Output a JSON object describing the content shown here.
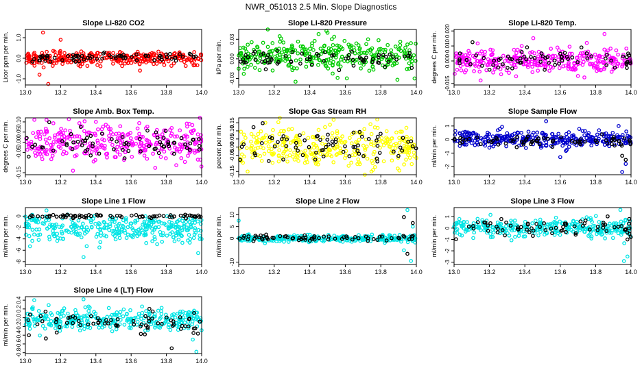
{
  "figure": {
    "title": "NWR_051013  2.5 Min. Slope Diagnostics"
  },
  "chart_data": [
    {
      "type": "scatter",
      "title": "Slope Li-820 CO2",
      "ylabel": "Licor ppm per min.",
      "xlim": [
        13.0,
        14.0
      ],
      "ylim": [
        -1.3,
        1.4
      ],
      "x_ticks": [
        "13.0",
        "13.2",
        "13.4",
        "13.6",
        "13.8",
        "14.0"
      ],
      "y_ticks": [
        {
          "v": -1.0,
          "label": "-1.0"
        },
        {
          "v": 0.0,
          "label": "0.0"
        },
        {
          "v": 1.0,
          "label": "1.0"
        }
      ],
      "series": [
        {
          "color": "#ff0000",
          "spread": 0.18,
          "center": 0.0,
          "outliers": [
            [
              13.1,
              1.25
            ],
            [
              13.13,
              -1.25
            ],
            [
              13.08,
              -0.8
            ],
            [
              13.2,
              0.9
            ],
            [
              13.65,
              -0.6
            ]
          ]
        },
        {
          "color": "#000000",
          "spread": 0.1,
          "center": 0.05
        }
      ]
    },
    {
      "type": "scatter",
      "title": "Slope Li-820 Pressure",
      "ylabel": "kPa per min.",
      "xlim": [
        13.0,
        14.0
      ],
      "ylim": [
        -0.04,
        0.045
      ],
      "x_ticks": [
        "13.0",
        "13.2",
        "13.4",
        "13.6",
        "13.8",
        "14.0"
      ],
      "y_ticks": [
        {
          "v": -0.03,
          "label": "-0.03"
        },
        {
          "v": 0.0,
          "label": "0.00"
        },
        {
          "v": 0.03,
          "label": "0.03"
        }
      ],
      "series": [
        {
          "color": "#00cc00",
          "spread": 0.012,
          "center": 0.005,
          "outliers": [
            [
              13.32,
              -0.035
            ],
            [
              13.5,
              0.04
            ],
            [
              13.45,
              0.038
            ],
            [
              13.99,
              -0.03
            ],
            [
              13.0,
              -0.015
            ]
          ]
        },
        {
          "color": "#000000",
          "spread": 0.006,
          "center": -0.002
        }
      ]
    },
    {
      "type": "scatter",
      "title": "Slope Li-820 Temp.",
      "ylabel": "degrees C per min.",
      "xlim": [
        13.0,
        14.0
      ],
      "ylim": [
        -0.016,
        0.021
      ],
      "x_ticks": [
        "13.0",
        "13.2",
        "13.4",
        "13.6",
        "13.8",
        "14.0"
      ],
      "y_ticks": [
        {
          "v": -0.015,
          "label": "-0.015"
        },
        {
          "v": 0.0,
          "label": "0.000"
        },
        {
          "v": 0.01,
          "label": "0.010"
        },
        {
          "v": 0.02,
          "label": "0.020"
        }
      ],
      "series": [
        {
          "color": "#ff00ff",
          "spread": 0.004,
          "center": 0.0,
          "outliers": [
            [
              13.85,
              0.018
            ],
            [
              13.15,
              -0.013
            ],
            [
              13.75,
              0.012
            ],
            [
              13.7,
              -0.01
            ]
          ]
        },
        {
          "color": "#000000",
          "spread": 0.003,
          "center": 0.001
        }
      ]
    },
    {
      "type": "scatter",
      "title": "Slope Amb. Box Temp.",
      "ylabel": "degrees C per min.",
      "xlim": [
        13.0,
        14.0
      ],
      "ylim": [
        -0.16,
        0.12
      ],
      "x_ticks": [
        "13.0",
        "13.2",
        "13.4",
        "13.6",
        "13.8",
        "14.0"
      ],
      "y_ticks": [
        {
          "v": -0.15,
          "label": "-0.15"
        },
        {
          "v": -0.05,
          "label": "-0.05"
        },
        {
          "v": 0.0,
          "label": "0.00"
        },
        {
          "v": 0.05,
          "label": "0.05"
        },
        {
          "v": 0.1,
          "label": "0.10"
        }
      ],
      "series": [
        {
          "color": "#ff00ff",
          "spread": 0.045,
          "center": 0.0,
          "outliers": [
            [
              13.12,
              0.11
            ],
            [
              13.27,
              -0.14
            ],
            [
              13.4,
              0.1
            ]
          ]
        },
        {
          "color": "#000000",
          "spread": 0.035,
          "center": 0.0
        }
      ]
    },
    {
      "type": "scatter",
      "title": "Slope Gas Stream RH",
      "ylabel": "percent per min.",
      "xlim": [
        13.0,
        14.0
      ],
      "ylim": [
        -0.17,
        0.18
      ],
      "x_ticks": [
        "13.0",
        "13.2",
        "13.4",
        "13.6",
        "13.8",
        "14.0"
      ],
      "y_ticks": [
        {
          "v": -0.15,
          "label": "-0.15"
        },
        {
          "v": -0.05,
          "label": "-0.05"
        },
        {
          "v": 0.0,
          "label": "0.00"
        },
        {
          "v": 0.05,
          "label": "0.05"
        },
        {
          "v": 0.1,
          "label": "0.10"
        },
        {
          "v": 0.15,
          "label": "0.15"
        }
      ],
      "series": [
        {
          "color": "#ffff00",
          "spread": 0.06,
          "center": 0.0,
          "outliers": [
            [
              13.15,
              0.15
            ],
            [
              13.05,
              -0.15
            ],
            [
              13.78,
              0.17
            ]
          ]
        },
        {
          "color": "#000000",
          "spread": 0.05,
          "center": 0.0
        }
      ]
    },
    {
      "type": "scatter",
      "title": "Slope Sample Flow",
      "ylabel": "ml/min per min.",
      "xlim": [
        13.0,
        14.0
      ],
      "ylim": [
        -2.6,
        1.6
      ],
      "x_ticks": [
        "13.0",
        "13.2",
        "13.4",
        "13.6",
        "13.8",
        "14.0"
      ],
      "y_ticks": [
        {
          "v": -2.0,
          "label": "-2"
        },
        {
          "v": -1.0,
          "label": "-1"
        },
        {
          "v": 0.0,
          "label": "0"
        },
        {
          "v": 1.0,
          "label": "1"
        }
      ],
      "series": [
        {
          "color": "#0000cc",
          "spread": 0.3,
          "center": 0.0,
          "outliers": [
            [
              13.52,
              1.35
            ],
            [
              13.95,
              -2.4
            ],
            [
              13.93,
              1.0
            ],
            [
              13.6,
              -1.3
            ],
            [
              13.97,
              -1.8
            ]
          ]
        },
        {
          "color": "#000000",
          "spread": 0.2,
          "center": -0.1,
          "outliers": [
            [
              13.97,
              -1.5
            ],
            [
              13.95,
              -1.2
            ]
          ]
        }
      ]
    },
    {
      "type": "scatter",
      "title": "Slope Line 1 Flow",
      "ylabel": "ml/min per min.",
      "xlim": [
        13.0,
        14.0
      ],
      "ylim": [
        -8.5,
        1.5
      ],
      "x_ticks": [
        "13.0",
        "13.2",
        "13.4",
        "13.6",
        "13.8",
        "14.0"
      ],
      "y_ticks": [
        {
          "v": -8.0,
          "label": "-8"
        },
        {
          "v": -6.0,
          "label": "-6"
        },
        {
          "v": -4.0,
          "label": "-4"
        },
        {
          "v": -2.0,
          "label": "-2"
        },
        {
          "v": 0.0,
          "label": "0"
        }
      ],
      "series": [
        {
          "color": "#00e5e5",
          "spread": 1.2,
          "center": -2.2,
          "outliers": [
            [
              13.33,
              -7.2
            ],
            [
              13.12,
              1.0
            ],
            [
              13.98,
              -6.5
            ],
            [
              13.42,
              -5.5
            ]
          ]
        },
        {
          "color": "#000000",
          "spread": 0.15,
          "center": 0.0
        }
      ]
    },
    {
      "type": "scatter",
      "title": "Slope Line 2 Flow",
      "ylabel": "ml/min per min.",
      "xlim": [
        13.0,
        14.0
      ],
      "ylim": [
        -11.0,
        13.0
      ],
      "x_ticks": [
        "13.0",
        "13.2",
        "13.4",
        "13.6",
        "13.8",
        "14.0"
      ],
      "y_ticks": [
        {
          "v": -10.0,
          "label": "-10"
        },
        {
          "v": 0.0,
          "label": "0"
        },
        {
          "v": 5.0,
          "label": "5"
        },
        {
          "v": 10.0,
          "label": "10"
        }
      ],
      "series": [
        {
          "color": "#00e5e5",
          "spread": 0.7,
          "center": 0.0,
          "outliers": [
            [
              13.0,
              7.5
            ],
            [
              13.95,
              12.0
            ],
            [
              13.97,
              -9.5
            ],
            [
              13.93,
              -5.0
            ],
            [
              13.98,
              5.0
            ]
          ]
        },
        {
          "color": "#000000",
          "spread": 0.7,
          "center": 0.3,
          "outliers": [
            [
              13.98,
              6.5
            ],
            [
              13.93,
              9.0
            ],
            [
              13.95,
              -6.5
            ]
          ]
        }
      ]
    },
    {
      "type": "scatter",
      "title": "Slope Line 3 Flow",
      "ylabel": "ml/min per min.",
      "xlim": [
        13.0,
        14.0
      ],
      "ylim": [
        -3.2,
        1.8
      ],
      "x_ticks": [
        "13.0",
        "13.2",
        "13.4",
        "13.6",
        "13.8",
        "14.0"
      ],
      "y_ticks": [
        {
          "v": -3.0,
          "label": "-3"
        },
        {
          "v": -2.0,
          "label": "-2"
        },
        {
          "v": -1.0,
          "label": "-1"
        },
        {
          "v": 0.0,
          "label": "0"
        },
        {
          "v": 1.0,
          "label": "1"
        }
      ],
      "series": [
        {
          "color": "#00e5e5",
          "spread": 0.4,
          "center": 0.0,
          "outliers": [
            [
              13.94,
              1.6
            ],
            [
              13.96,
              -2.9
            ],
            [
              13.03,
              0.8
            ],
            [
              13.98,
              -2.5
            ]
          ]
        },
        {
          "color": "#000000",
          "spread": 0.35,
          "center": 0.0,
          "outliers": [
            [
              13.98,
              -1.0
            ],
            [
              13.99,
              0.8
            ]
          ]
        }
      ]
    },
    {
      "type": "scatter",
      "title": "Slope Line 4 (LT) Flow",
      "ylabel": "ml/min per min.",
      "xlim": [
        13.0,
        14.0
      ],
      "ylim": [
        -0.82,
        0.48
      ],
      "x_ticks": [
        "13.0",
        "13.2",
        "13.4",
        "13.6",
        "13.8",
        "14.0"
      ],
      "y_ticks": [
        {
          "v": -0.8,
          "label": "-0.8"
        },
        {
          "v": -0.6,
          "label": "-0.6"
        },
        {
          "v": -0.4,
          "label": "-0.4"
        },
        {
          "v": -0.2,
          "label": "-0.2"
        },
        {
          "v": 0.0,
          "label": "0.0"
        },
        {
          "v": 0.2,
          "label": "0.2"
        },
        {
          "v": 0.4,
          "label": "0.4"
        }
      ],
      "series": [
        {
          "color": "#00e5e5",
          "spread": 0.12,
          "center": -0.05,
          "outliers": [
            [
              13.97,
              -0.78
            ],
            [
              13.33,
              0.42
            ],
            [
              13.05,
              0.4
            ],
            [
              13.95,
              -0.5
            ]
          ]
        },
        {
          "color": "#000000",
          "spread": 0.12,
          "center": -0.1,
          "outliers": [
            [
              13.83,
              -0.7
            ],
            [
              13.02,
              -0.4
            ]
          ]
        }
      ]
    }
  ]
}
